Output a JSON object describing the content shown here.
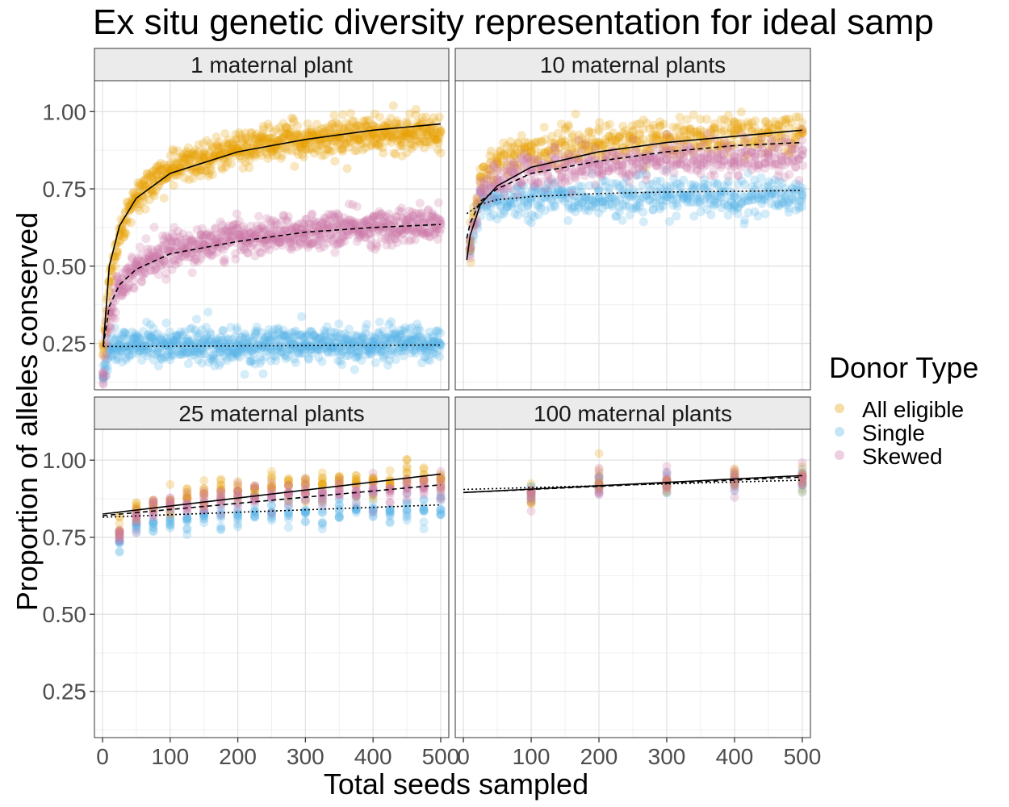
{
  "chart_data": {
    "type": "scatter",
    "title": "Ex situ genetic diversity representation for ideal samp",
    "xlabel": "Total seeds sampled",
    "ylabel": "Proportion of alleles conserved",
    "xlim": [
      -12,
      512
    ],
    "ylim": [
      0.1,
      1.1
    ],
    "x_ticks": [
      "0",
      "100",
      "200",
      "300",
      "400",
      "500"
    ],
    "y_ticks": [
      "0.25",
      "0.50",
      "0.75",
      "1.00"
    ],
    "grid": true,
    "legend": {
      "title": "Donor Type",
      "position": "right",
      "items": [
        "All eligible",
        "Single",
        "Skewed"
      ]
    },
    "colors": {
      "All eligible": "#E69F00",
      "Single": "#56B4E9",
      "Skewed": "#CC79A7"
    },
    "panels": [
      {
        "label": "1 maternal plant",
        "series": [
          {
            "name": "All eligible",
            "x": [
              1,
              10,
              25,
              50,
              75,
              100,
              150,
              200,
              250,
              300,
              350,
              400,
              450,
              500
            ],
            "y": [
              0.24,
              0.45,
              0.6,
              0.72,
              0.78,
              0.81,
              0.85,
              0.88,
              0.9,
              0.91,
              0.92,
              0.925,
              0.93,
              0.935
            ]
          },
          {
            "name": "Single",
            "x": [
              1,
              10,
              25,
              50,
              100,
              200,
              300,
              400,
              500
            ],
            "y": [
              0.14,
              0.24,
              0.245,
              0.245,
              0.245,
              0.245,
              0.245,
              0.245,
              0.245
            ]
          },
          {
            "name": "Skewed",
            "x": [
              1,
              10,
              25,
              50,
              75,
              100,
              150,
              200,
              250,
              300,
              350,
              400,
              450,
              500
            ],
            "y": [
              0.15,
              0.35,
              0.44,
              0.5,
              0.53,
              0.55,
              0.57,
              0.59,
              0.6,
              0.61,
              0.62,
              0.625,
              0.63,
              0.635
            ]
          }
        ],
        "fits": [
          {
            "name": "All eligible",
            "x": [
              1,
              10,
              25,
              50,
              100,
              200,
              300,
              400,
              500
            ],
            "y": [
              0.24,
              0.5,
              0.63,
              0.72,
              0.8,
              0.87,
              0.91,
              0.94,
              0.96
            ]
          },
          {
            "name": "Single",
            "x": [
              1,
              500
            ],
            "y": [
              0.24,
              0.245
            ]
          },
          {
            "name": "Skewed",
            "x": [
              1,
              10,
              25,
              50,
              100,
              200,
              300,
              400,
              500
            ],
            "y": [
              0.24,
              0.37,
              0.44,
              0.49,
              0.54,
              0.58,
              0.61,
              0.625,
              0.635
            ]
          }
        ]
      },
      {
        "label": "10 maternal plants",
        "series": [
          {
            "name": "All eligible",
            "x": [
              10,
              25,
              50,
              75,
              100,
              150,
              200,
              250,
              300,
              350,
              400,
              450,
              500
            ],
            "y": [
              0.58,
              0.79,
              0.84,
              0.86,
              0.87,
              0.89,
              0.9,
              0.91,
              0.915,
              0.92,
              0.925,
              0.93,
              0.93
            ]
          },
          {
            "name": "Single",
            "x": [
              10,
              25,
              50,
              100,
              200,
              300,
              400,
              500
            ],
            "y": [
              0.55,
              0.7,
              0.71,
              0.72,
              0.72,
              0.725,
              0.725,
              0.73
            ]
          },
          {
            "name": "Skewed",
            "x": [
              10,
              25,
              50,
              75,
              100,
              150,
              200,
              250,
              300,
              350,
              400,
              450,
              500
            ],
            "y": [
              0.56,
              0.74,
              0.78,
              0.8,
              0.81,
              0.82,
              0.83,
              0.84,
              0.845,
              0.85,
              0.855,
              0.86,
              0.86
            ]
          }
        ],
        "fits": [
          {
            "name": "All eligible",
            "x": [
              5,
              10,
              25,
              50,
              100,
              200,
              300,
              400,
              500
            ],
            "y": [
              0.52,
              0.6,
              0.7,
              0.76,
              0.82,
              0.87,
              0.9,
              0.92,
              0.94
            ]
          },
          {
            "name": "Single",
            "x": [
              5,
              25,
              50,
              100,
              200,
              300,
              400,
              500
            ],
            "y": [
              0.67,
              0.7,
              0.715,
              0.725,
              0.735,
              0.74,
              0.742,
              0.745
            ]
          },
          {
            "name": "Skewed",
            "x": [
              5,
              10,
              25,
              50,
              100,
              200,
              300,
              400,
              500
            ],
            "y": [
              0.59,
              0.64,
              0.71,
              0.75,
              0.8,
              0.84,
              0.87,
              0.89,
              0.9
            ]
          }
        ]
      },
      {
        "label": "25 maternal plants",
        "series": [
          {
            "name": "All eligible",
            "x": [
              25,
              50,
              75,
              100,
              125,
              150,
              175,
              200,
              225,
              250,
              275,
              300,
              325,
              350,
              375,
              400,
              425,
              450,
              475,
              500
            ],
            "y": [
              0.77,
              0.84,
              0.86,
              0.87,
              0.88,
              0.89,
              0.9,
              0.9,
              0.91,
              0.91,
              0.92,
              0.92,
              0.92,
              0.93,
              0.93,
              0.93,
              0.93,
              0.94,
              0.94,
              0.94
            ]
          },
          {
            "name": "Single",
            "x": [
              25,
              50,
              75,
              100,
              125,
              150,
              175,
              200,
              225,
              250,
              275,
              300,
              325,
              350,
              375,
              400,
              425,
              450,
              475,
              500
            ],
            "y": [
              0.74,
              0.79,
              0.8,
              0.81,
              0.81,
              0.82,
              0.82,
              0.82,
              0.83,
              0.83,
              0.83,
              0.83,
              0.83,
              0.84,
              0.84,
              0.84,
              0.84,
              0.84,
              0.84,
              0.84
            ]
          },
          {
            "name": "Skewed",
            "x": [
              25,
              50,
              75,
              100,
              125,
              150,
              175,
              200,
              225,
              250,
              275,
              300,
              325,
              350,
              375,
              400,
              425,
              450,
              475,
              500
            ],
            "y": [
              0.75,
              0.82,
              0.84,
              0.85,
              0.86,
              0.86,
              0.87,
              0.88,
              0.88,
              0.88,
              0.89,
              0.89,
              0.89,
              0.9,
              0.9,
              0.9,
              0.9,
              0.91,
              0.91,
              0.91
            ]
          }
        ],
        "fits": [
          {
            "name": "All eligible",
            "x": [
              0,
              500
            ],
            "y": [
              0.825,
              0.955
            ]
          },
          {
            "name": "Single",
            "x": [
              0,
              500
            ],
            "y": [
              0.815,
              0.855
            ]
          },
          {
            "name": "Skewed",
            "x": [
              0,
              500
            ],
            "y": [
              0.82,
              0.92
            ]
          }
        ]
      },
      {
        "label": "100 maternal plants",
        "series": [
          {
            "name": "All eligible",
            "x": [
              100,
              200,
              300,
              400,
              500
            ],
            "y": [
              0.9,
              0.925,
              0.935,
              0.945,
              0.95
            ]
          },
          {
            "name": "Single",
            "x": [
              100,
              200,
              300,
              400,
              500
            ],
            "y": [
              0.89,
              0.91,
              0.92,
              0.925,
              0.93
            ]
          },
          {
            "name": "Skewed",
            "x": [
              100,
              200,
              300,
              400,
              500
            ],
            "y": [
              0.895,
              0.92,
              0.93,
              0.935,
              0.94
            ]
          }
        ],
        "fits": [
          {
            "name": "All eligible",
            "x": [
              0,
              500
            ],
            "y": [
              0.895,
              0.95
            ]
          },
          {
            "name": "Single",
            "x": [
              0,
              500
            ],
            "y": [
              0.905,
              0.935
            ]
          },
          {
            "name": "Skewed",
            "x": [
              0,
              500
            ],
            "y": [
              0.895,
              0.945
            ]
          }
        ]
      }
    ]
  }
}
